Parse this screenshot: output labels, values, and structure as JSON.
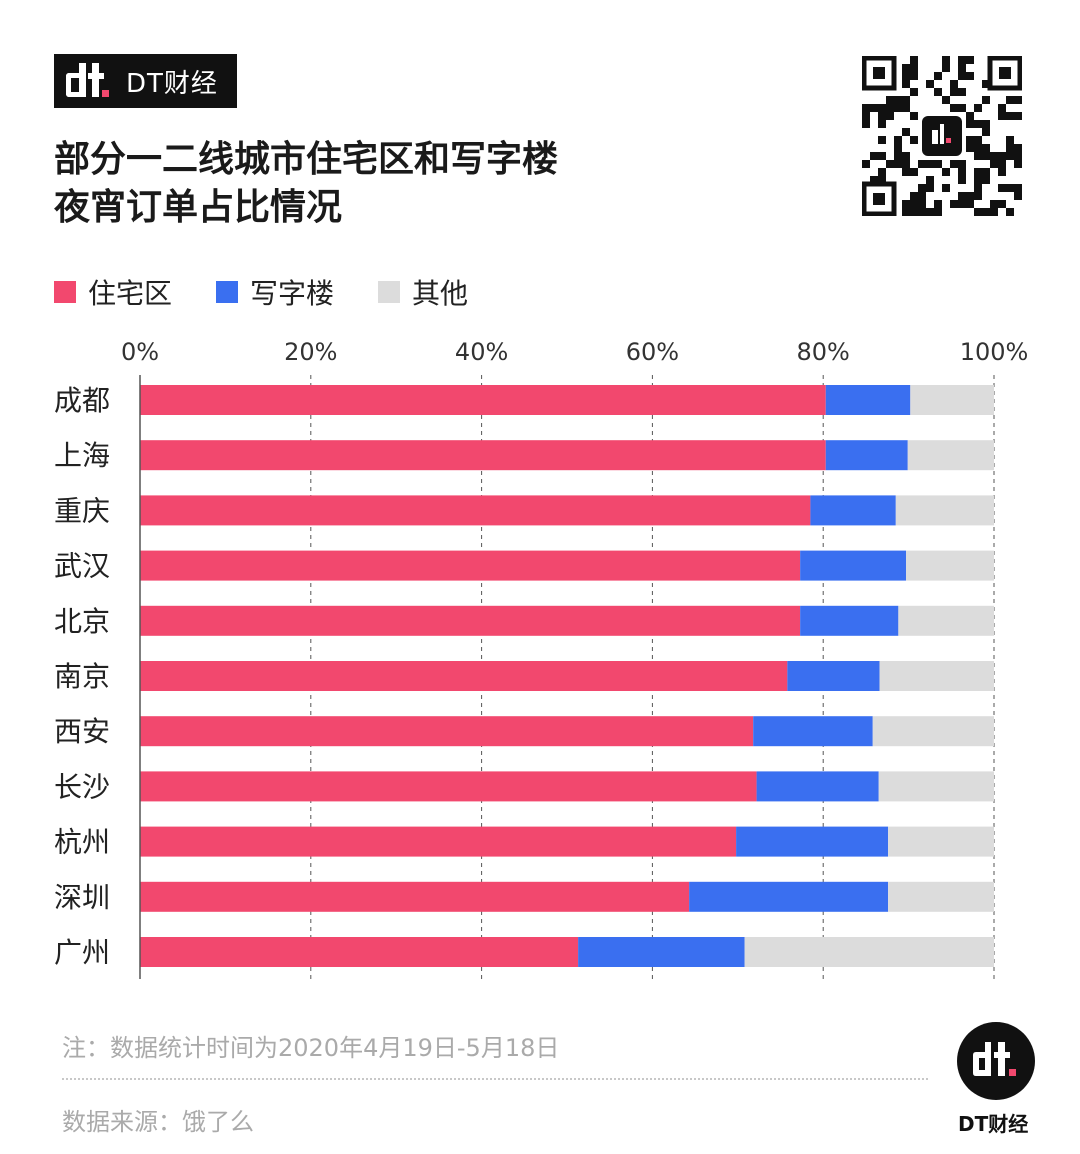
{
  "brand": {
    "name": "DT财经"
  },
  "title": {
    "line1": "部分一二线城市住宅区和写字楼",
    "line2": "夜宵订单占比情况"
  },
  "colors": {
    "residential": "#f2486e",
    "office": "#3a6ff0",
    "other": "#dcdcdc",
    "axis": "#555555",
    "grid": "#555555"
  },
  "chart_data": {
    "type": "bar",
    "orientation": "horizontal",
    "stacked": true,
    "categories": [
      "成都",
      "上海",
      "重庆",
      "武汉",
      "北京",
      "南京",
      "西安",
      "长沙",
      "杭州",
      "深圳",
      "广州"
    ],
    "series": [
      {
        "name": "住宅区",
        "values": [
          80.3,
          80.3,
          78.5,
          77.3,
          77.3,
          75.8,
          71.8,
          72.2,
          69.8,
          64.3,
          51.3
        ]
      },
      {
        "name": "写字楼",
        "values": [
          9.9,
          9.6,
          10.0,
          12.4,
          11.5,
          10.8,
          14.0,
          14.3,
          17.8,
          23.3,
          19.5
        ]
      },
      {
        "name": "其他",
        "values": [
          9.8,
          10.1,
          11.5,
          10.3,
          11.2,
          13.4,
          14.2,
          13.5,
          12.4,
          12.4,
          29.2
        ]
      }
    ],
    "xticks": [
      "0%",
      "20%",
      "40%",
      "60%",
      "80%",
      "100%"
    ],
    "xlim": [
      0,
      100
    ],
    "grid": "vertical dashed",
    "legend": "top-left"
  },
  "footer": {
    "note": "注：数据统计时间为2020年4月19日-5月18日",
    "source": "数据来源：饿了么",
    "logo_text": "DT财经"
  }
}
